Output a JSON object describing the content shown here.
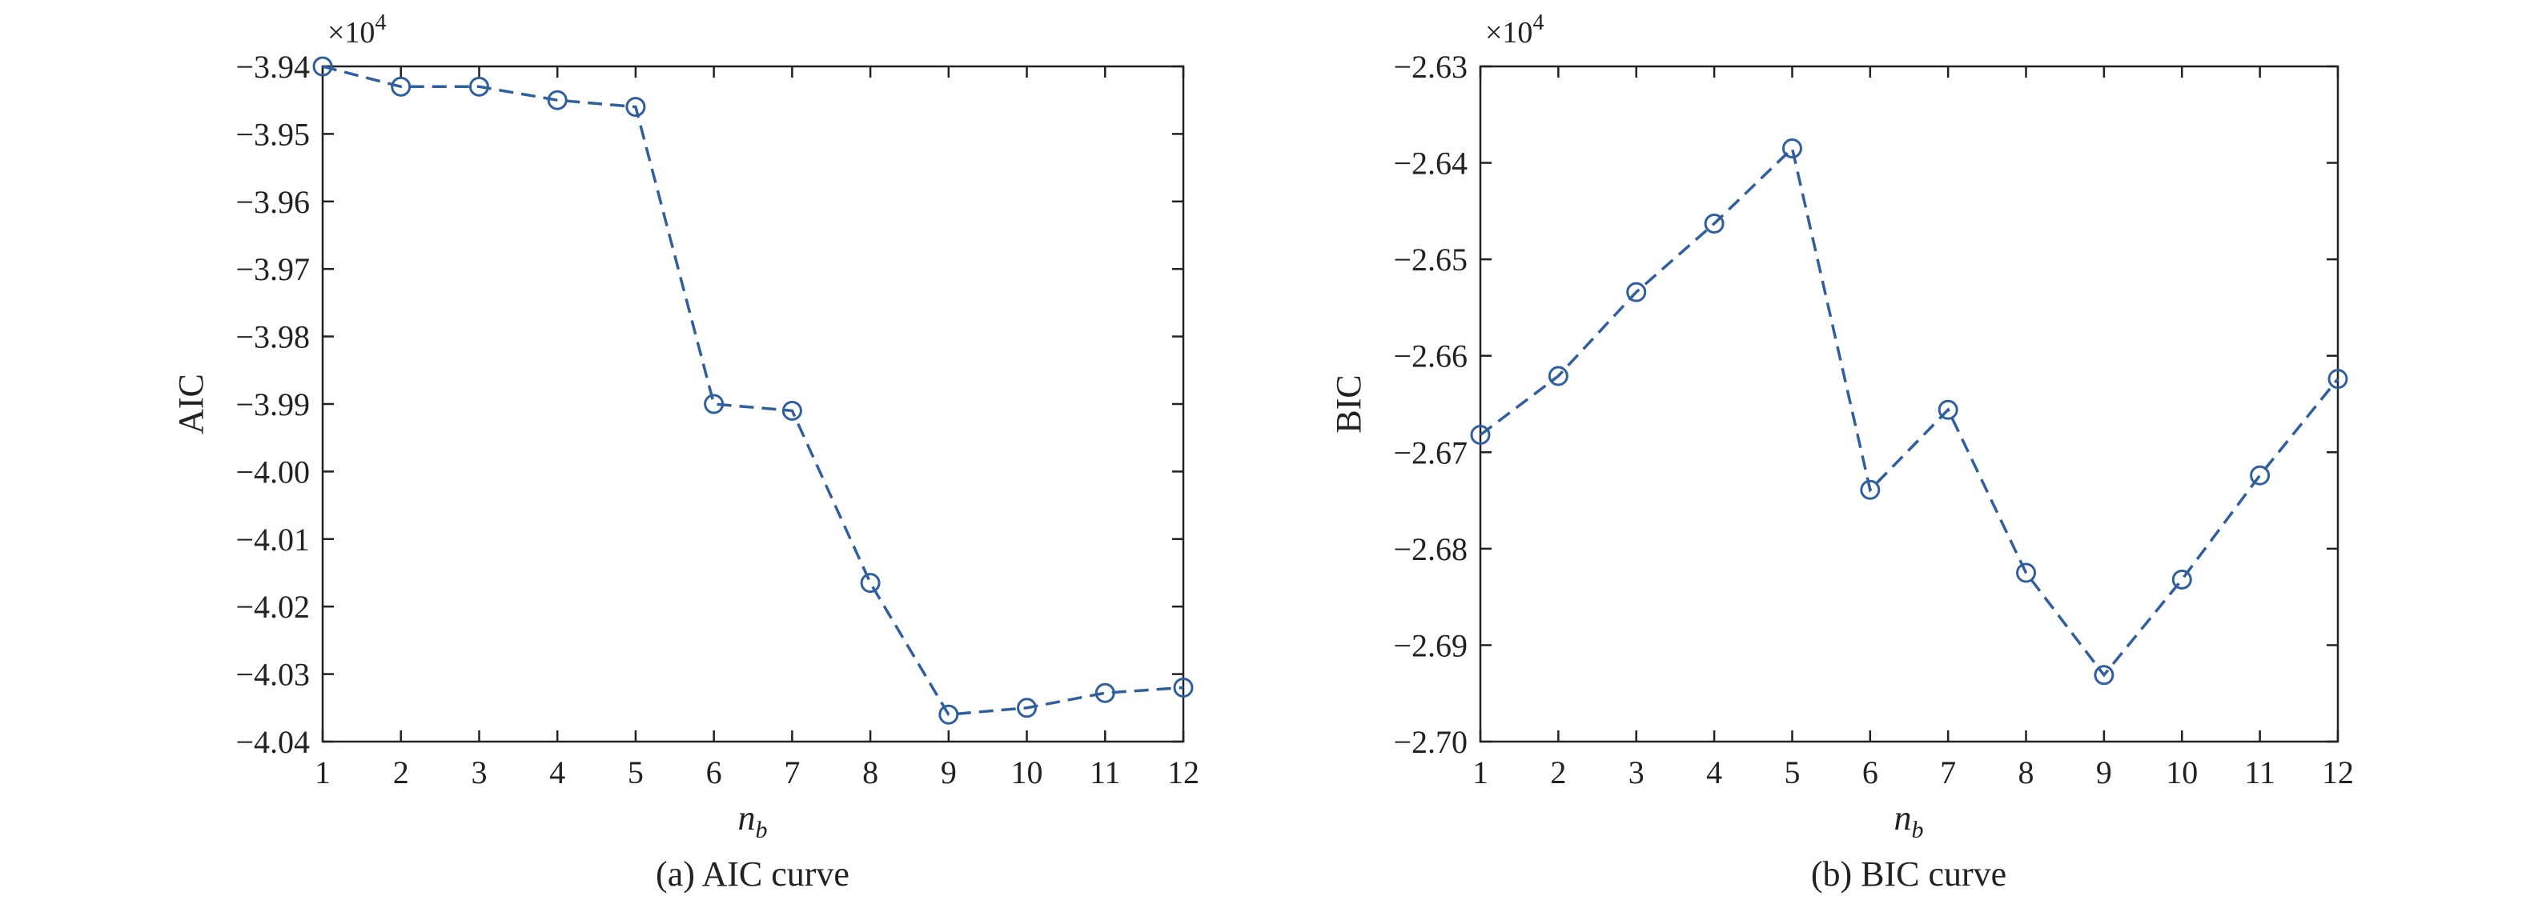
{
  "chart_data": [
    {
      "type": "line",
      "caption": "(a) AIC curve",
      "ylabel": "AIC",
      "xlabel_main": "n",
      "xlabel_sub": "b",
      "multiplier_base": "×10",
      "multiplier_exp": "4",
      "x": [
        1,
        2,
        3,
        4,
        5,
        6,
        7,
        8,
        9,
        10,
        11,
        12
      ],
      "xticks": [
        "1",
        "2",
        "3",
        "4",
        "5",
        "6",
        "7",
        "8",
        "9",
        "10",
        "11",
        "12"
      ],
      "xlim": [
        1,
        12
      ],
      "ylim": [
        -4.04,
        -3.94
      ],
      "yticks": [
        -3.94,
        -3.95,
        -3.96,
        -3.97,
        -3.98,
        -3.99,
        -4.0,
        -4.01,
        -4.02,
        -4.03,
        -4.04
      ],
      "ytick_labels": [
        "−3.94",
        "−3.95",
        "−3.96",
        "−3.97",
        "−3.98",
        "−3.99",
        "−4.00",
        "−4.01",
        "−4.02",
        "−4.03",
        "−4.04"
      ],
      "series": [
        {
          "values": [
            -3.94,
            -3.943,
            -3.943,
            -3.945,
            -3.946,
            -3.99,
            -3.991,
            -4.0165,
            -4.036,
            -4.035,
            -4.0328,
            -4.032
          ]
        }
      ],
      "grid": false,
      "line_style": "dashed",
      "marker": "circle",
      "color": "#2f5f9e"
    },
    {
      "type": "line",
      "caption": "(b) BIC curve",
      "ylabel": "BIC",
      "xlabel_main": "n",
      "xlabel_sub": "b",
      "multiplier_base": "×10",
      "multiplier_exp": "4",
      "x": [
        1,
        2,
        3,
        4,
        5,
        6,
        7,
        8,
        9,
        10,
        11,
        12
      ],
      "xticks": [
        "1",
        "2",
        "3",
        "4",
        "5",
        "6",
        "7",
        "8",
        "9",
        "10",
        "11",
        "12"
      ],
      "xlim": [
        1,
        12
      ],
      "ylim": [
        -2.7,
        -2.63
      ],
      "yticks": [
        -2.63,
        -2.64,
        -2.65,
        -2.66,
        -2.67,
        -2.68,
        -2.69,
        -2.7
      ],
      "ytick_labels": [
        "−2.63",
        "−2.64",
        "−2.65",
        "−2.66",
        "−2.67",
        "−2.68",
        "−2.69",
        "−2.70"
      ],
      "series": [
        {
          "values": [
            -2.6682,
            -2.6621,
            -2.6534,
            -2.6463,
            -2.6385,
            -2.6739,
            -2.6656,
            -2.6825,
            -2.6931,
            -2.6832,
            -2.6724,
            -2.6624
          ]
        }
      ],
      "grid": false,
      "line_style": "dashed",
      "marker": "circle",
      "color": "#2f5f9e"
    }
  ]
}
